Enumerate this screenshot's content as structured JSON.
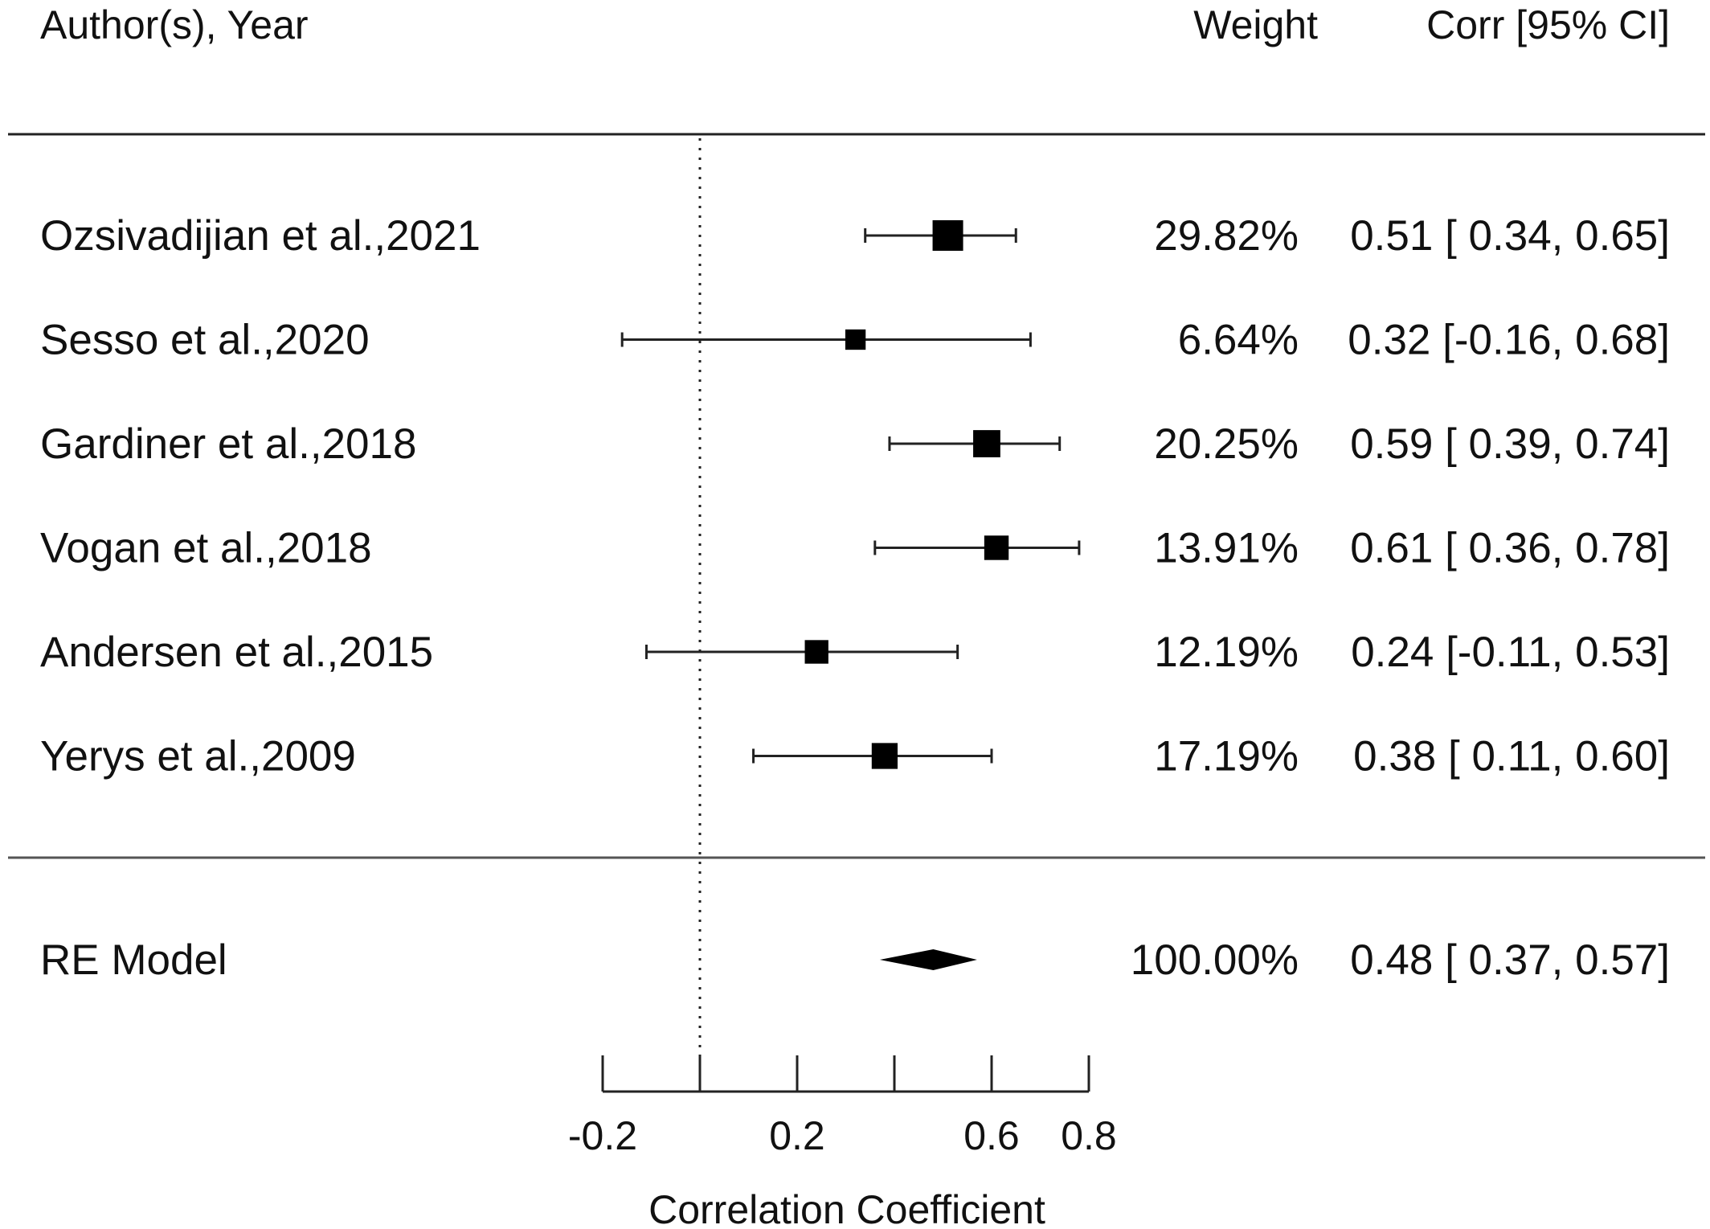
{
  "header": {
    "study": "Author(s), Year",
    "weight": "Weight",
    "estimate": "Corr [95% CI]"
  },
  "chart_data": {
    "type": "forest",
    "xlabel": "Correlation Coefficient",
    "xlim": [
      -0.2,
      0.8
    ],
    "xticks": [
      -0.2,
      0.0,
      0.2,
      0.4,
      0.6,
      0.8
    ],
    "xtick_labels": [
      "-0.2",
      "",
      "0.2",
      "",
      "0.6",
      "0.8"
    ],
    "reference_line": 0.0,
    "studies": [
      {
        "label": "Ozsivadijian et al.,2021",
        "weight": "29.82%",
        "estimate": 0.51,
        "ci_low": 0.34,
        "ci_high": 0.65,
        "estimate_text": "0.51 [ 0.34, 0.65]"
      },
      {
        "label": "Sesso et al.,2020",
        "weight": "6.64%",
        "estimate": 0.32,
        "ci_low": -0.16,
        "ci_high": 0.68,
        "estimate_text": "0.32 [-0.16, 0.68]"
      },
      {
        "label": "Gardiner et al.,2018",
        "weight": "20.25%",
        "estimate": 0.59,
        "ci_low": 0.39,
        "ci_high": 0.74,
        "estimate_text": "0.59 [ 0.39, 0.74]"
      },
      {
        "label": "Vogan et al.,2018",
        "weight": "13.91%",
        "estimate": 0.61,
        "ci_low": 0.36,
        "ci_high": 0.78,
        "estimate_text": "0.61 [ 0.36, 0.78]"
      },
      {
        "label": "Andersen et al.,2015",
        "weight": "12.19%",
        "estimate": 0.24,
        "ci_low": -0.11,
        "ci_high": 0.53,
        "estimate_text": "0.24 [-0.11, 0.53]"
      },
      {
        "label": "Yerys et al.,2009",
        "weight": "17.19%",
        "estimate": 0.38,
        "ci_low": 0.11,
        "ci_high": 0.6,
        "estimate_text": "0.38 [ 0.11, 0.60]"
      }
    ],
    "summary": {
      "label": "RE Model",
      "weight": "100.00%",
      "estimate": 0.48,
      "ci_low": 0.37,
      "ci_high": 0.57,
      "estimate_text": "0.48 [ 0.37, 0.57]"
    }
  }
}
